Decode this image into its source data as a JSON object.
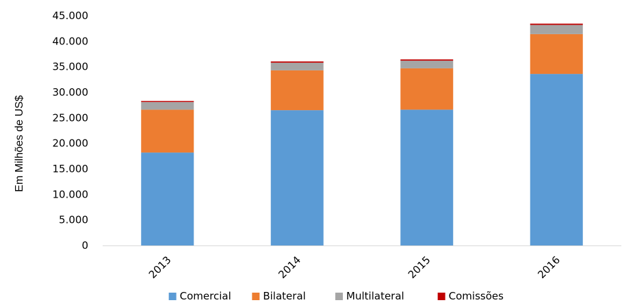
{
  "chart_data": {
    "type": "bar",
    "stacked": true,
    "categories": [
      "2013",
      "2014",
      "2015",
      "2016"
    ],
    "series": [
      {
        "name": "Comercial",
        "color": "#5b9bd5",
        "values": [
          18200,
          26500,
          26600,
          33600
        ]
      },
      {
        "name": "Bilateral",
        "color": "#ed7d31",
        "values": [
          8400,
          7800,
          8100,
          7800
        ]
      },
      {
        "name": "Multilateral",
        "color": "#a5a5a5",
        "values": [
          1500,
          1500,
          1500,
          1800
        ]
      },
      {
        "name": "Comissões",
        "color": "#c00000",
        "values": [
          200,
          250,
          250,
          250
        ]
      }
    ],
    "ylabel": "Em Milhões de US$",
    "xlabel": "",
    "ylim": [
      0,
      45000
    ],
    "yticks": [
      "0",
      "5.000",
      "10.000",
      "15.000",
      "20.000",
      "25.000",
      "30.000",
      "35.000",
      "40.000",
      "45.000"
    ],
    "grid": false,
    "legend_position": "bottom"
  }
}
